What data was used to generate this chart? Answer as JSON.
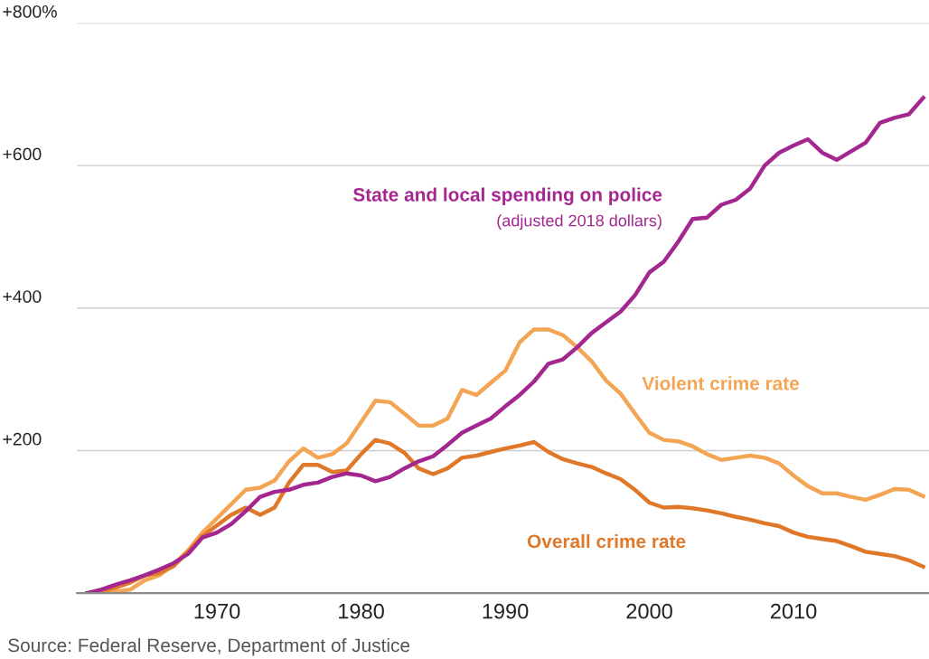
{
  "chart_data": {
    "type": "line",
    "x": [
      1961,
      1962,
      1963,
      1964,
      1965,
      1966,
      1967,
      1968,
      1969,
      1970,
      1971,
      1972,
      1973,
      1974,
      1975,
      1976,
      1977,
      1978,
      1979,
      1980,
      1981,
      1982,
      1983,
      1984,
      1985,
      1986,
      1987,
      1988,
      1989,
      1990,
      1991,
      1992,
      1993,
      1994,
      1995,
      1996,
      1997,
      1998,
      1999,
      2000,
      2001,
      2002,
      2003,
      2004,
      2005,
      2006,
      2007,
      2008,
      2009,
      2010,
      2011,
      2012,
      2013,
      2014,
      2015,
      2016,
      2017,
      2018,
      2019
    ],
    "series": [
      {
        "name": "Violent crime rate",
        "color": "#f4a553",
        "values": [
          0,
          0,
          2,
          5,
          18,
          25,
          40,
          60,
          85,
          105,
          125,
          145,
          148,
          158,
          185,
          203,
          190,
          195,
          210,
          240,
          270,
          268,
          252,
          235,
          235,
          245,
          285,
          278,
          295,
          312,
          352,
          370,
          370,
          362,
          345,
          325,
          298,
          280,
          252,
          225,
          215,
          213,
          206,
          195,
          187,
          190,
          193,
          190,
          182,
          165,
          150,
          140,
          140,
          135,
          131,
          138,
          146,
          145,
          136
        ]
      },
      {
        "name": "Overall crime rate",
        "color": "#e0782a",
        "values": [
          0,
          3,
          8,
          15,
          25,
          28,
          38,
          58,
          80,
          95,
          110,
          120,
          110,
          120,
          155,
          180,
          180,
          170,
          172,
          195,
          215,
          210,
          197,
          175,
          167,
          175,
          190,
          193,
          198,
          203,
          207,
          212,
          198,
          188,
          182,
          177,
          168,
          160,
          145,
          127,
          120,
          121,
          119,
          116,
          112,
          107,
          103,
          98,
          94,
          85,
          79,
          76,
          73,
          66,
          58,
          55,
          52,
          46,
          37
        ]
      },
      {
        "name": "State and local spending on police",
        "color": "#a3278f",
        "values": [
          0,
          5,
          12,
          18,
          25,
          33,
          42,
          55,
          78,
          85,
          97,
          115,
          135,
          142,
          145,
          152,
          155,
          163,
          168,
          165,
          157,
          163,
          175,
          185,
          192,
          208,
          225,
          235,
          245,
          262,
          278,
          297,
          322,
          328,
          345,
          365,
          380,
          395,
          418,
          450,
          465,
          493,
          525,
          527,
          545,
          552,
          568,
          600,
          618,
          628,
          637,
          618,
          608,
          620,
          632,
          660,
          667,
          672,
          695
        ]
      }
    ],
    "xlim": [
      1960.3,
      2019.4
    ],
    "xticks": [
      1970,
      1980,
      1990,
      2000,
      2010
    ],
    "ylim": [
      0,
      800
    ],
    "yticks": [
      {
        "value": 0,
        "label": null
      },
      {
        "value": 200,
        "label": "+200"
      },
      {
        "value": 400,
        "label": "+400"
      },
      {
        "value": 600,
        "label": "+600"
      },
      {
        "value": 800,
        "label": "+800%"
      }
    ],
    "grid": "y",
    "legend": false,
    "marker": "none",
    "line_style": "solid",
    "annotations": [
      "(adjusted 2018 dollars)",
      "Source: Federal Reserve, Department of Justice"
    ]
  }
}
